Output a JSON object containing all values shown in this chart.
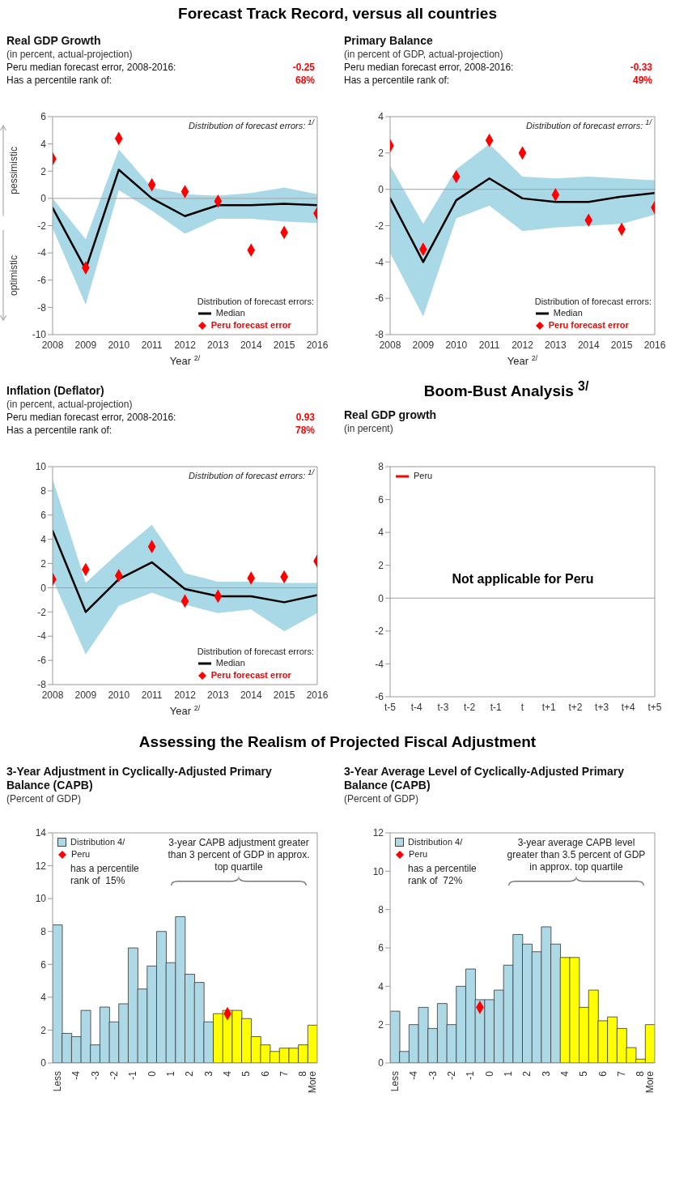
{
  "chart_data": [
    {
      "type": "line",
      "title": "Real GDP Growth",
      "subtitle": "(in percent, actual-projection)",
      "xlabel": "Year $^{2/}$",
      "legend_title": "Distribution of forecast errors:",
      "legend": "bottom right",
      "x": [
        2008,
        2009,
        2010,
        2011,
        2012,
        2013,
        2014,
        2015,
        2016
      ],
      "xlim": [
        2008,
        2016
      ],
      "xticks": [
        2008,
        2009,
        2010,
        2011,
        2012,
        2013,
        2014,
        2015,
        2016
      ],
      "ylim": [
        -10,
        6
      ],
      "yticks": [
        -10,
        -8,
        -6,
        -4,
        -2,
        0,
        2,
        4,
        6
      ],
      "series": [
        {
          "name": "Median",
          "type": "line",
          "color": "#000000",
          "marker": "none",
          "values": [
            -0.7,
            -5.2,
            2.1,
            0.0,
            -1.3,
            -0.5,
            -0.5,
            -0.4,
            -0.5
          ],
          "lower": [
            -2.2,
            -7.8,
            0.6,
            -0.9,
            -2.6,
            -1.5,
            -1.5,
            -1.7,
            -1.8
          ],
          "upper": [
            0.0,
            -3.0,
            3.6,
            0.8,
            0.3,
            0.2,
            0.4,
            0.8,
            0.3
          ]
        },
        {
          "name": "Peru forecast error",
          "type": "scatter",
          "color": "#ff0000",
          "marker": "diamond",
          "values": [
            2.9,
            -5.1,
            4.4,
            1.0,
            0.5,
            -0.2,
            -3.8,
            -2.5,
            -1.1
          ]
        }
      ],
      "ref_lines": [
        {
          "axis": "y",
          "value": 0,
          "color": "#a0a0a0"
        }
      ],
      "annotations": [
        "Peru median forecast error, 2008-2016:",
        "-0.25",
        "Has a percentile rank of:",
        "68%",
        "Distribution of forecast errors: $^{1/}$",
        "pessimistic",
        "optimistic"
      ]
    },
    {
      "type": "line",
      "title": "Primary Balance",
      "subtitle": "(in percent of GDP, actual-projection)",
      "xlabel": "Year $^{2/}$",
      "legend_title": "Distribution of forecast errors:",
      "legend": "bottom right",
      "x": [
        2008,
        2009,
        2010,
        2011,
        2012,
        2013,
        2014,
        2015,
        2016
      ],
      "xlim": [
        2008,
        2016
      ],
      "xticks": [
        2008,
        2009,
        2010,
        2011,
        2012,
        2013,
        2014,
        2015,
        2016
      ],
      "ylim": [
        -8,
        4
      ],
      "yticks": [
        -8,
        -6,
        -4,
        -2,
        0,
        2,
        4
      ],
      "series": [
        {
          "name": "Median",
          "type": "line",
          "color": "#000000",
          "marker": "none",
          "values": [
            -0.5,
            -4.0,
            -0.6,
            0.6,
            -0.5,
            -0.7,
            -0.7,
            -0.4,
            -0.2
          ],
          "lower": [
            -3.5,
            -7.0,
            -1.6,
            -0.9,
            -2.3,
            -2.1,
            -2.0,
            -1.9,
            -1.4
          ],
          "upper": [
            1.3,
            -1.9,
            1.1,
            2.5,
            0.7,
            0.6,
            0.7,
            0.6,
            0.5
          ]
        },
        {
          "name": "Peru forecast error",
          "type": "scatter",
          "color": "#ff0000",
          "marker": "diamond",
          "values": [
            2.4,
            -3.3,
            0.7,
            2.7,
            2.0,
            -0.3,
            -1.7,
            -2.2,
            -1.0
          ]
        }
      ],
      "ref_lines": [
        {
          "axis": "y",
          "value": 0,
          "color": "#a0a0a0"
        }
      ],
      "annotations": [
        "Peru median forecast error, 2008-2016:",
        "-0.33",
        "Has a percentile rank of:",
        "49%",
        "Distribution of forecast errors: $^{1/}$",
        "Forecast Track Record, versus all countries"
      ]
    },
    {
      "type": "line",
      "title": "Inflation (Deflator)",
      "subtitle": "(in percent, actual-projection)",
      "xlabel": "Year $^{2/}$",
      "legend_title": "Distribution of forecast errors:",
      "legend": "bottom right",
      "x": [
        2008,
        2009,
        2010,
        2011,
        2012,
        2013,
        2014,
        2015,
        2016
      ],
      "xlim": [
        2008,
        2016
      ],
      "xticks": [
        2008,
        2009,
        2010,
        2011,
        2012,
        2013,
        2014,
        2015,
        2016
      ],
      "ylim": [
        -8,
        10
      ],
      "yticks": [
        -8,
        -6,
        -4,
        -2,
        0,
        2,
        4,
        6,
        8,
        10
      ],
      "series": [
        {
          "name": "Median",
          "type": "line",
          "color": "#000000",
          "marker": "none",
          "values": [
            4.7,
            -2.0,
            0.7,
            2.1,
            -0.1,
            -0.7,
            -0.7,
            -1.2,
            -0.6
          ],
          "lower": [
            0.7,
            -5.5,
            -1.5,
            -0.4,
            -1.4,
            -2.1,
            -1.8,
            -3.6,
            -2.1
          ],
          "upper": [
            9.0,
            0.4,
            2.9,
            5.2,
            1.2,
            0.5,
            0.5,
            0.4,
            0.4
          ]
        },
        {
          "name": "Peru forecast error",
          "type": "scatter",
          "color": "#ff0000",
          "marker": "diamond",
          "values": [
            0.7,
            1.5,
            1.0,
            3.4,
            -1.1,
            -0.7,
            0.8,
            0.9,
            2.2
          ]
        }
      ],
      "ref_lines": [
        {
          "axis": "y",
          "value": 0,
          "color": "#a0a0a0"
        }
      ],
      "annotations": [
        "Peru median forecast error, 2008-2016:",
        "0.93",
        "Has a percentile rank of:",
        "78%",
        "Distribution of forecast errors: $^{1/}$"
      ]
    },
    {
      "type": "bar",
      "title": "3-Year Adjustment in Cyclically-Adjusted Primary Balance (CAPB)",
      "subtitle": "(Percent of GDP)",
      "legend": "top left",
      "categories": [
        "Less",
        null,
        "-4",
        null,
        "-3",
        null,
        "-2",
        null,
        "-1",
        null,
        "0",
        null,
        "1",
        null,
        "2",
        null,
        "3",
        null,
        "4",
        null,
        "5",
        null,
        "6",
        null,
        "7",
        null,
        "8",
        "More"
      ],
      "ylim": [
        0,
        14
      ],
      "yticks": [
        0,
        2,
        4,
        6,
        8,
        10,
        12,
        14
      ],
      "series": [
        {
          "name": "Distribution 4/",
          "type": "bar",
          "color": "#add8e6",
          "values": [
            8.4,
            1.8,
            1.6,
            3.2,
            1.1,
            3.4,
            2.5,
            3.6,
            7.0,
            4.5,
            5.9,
            8.0,
            6.1,
            8.9,
            5.4,
            4.9,
            2.5,
            3.0,
            3.2,
            3.2,
            2.7,
            1.6,
            1.1,
            0.7,
            0.9,
            0.9,
            1.1,
            2.3
          ],
          "colors": [
            "#add8e6",
            "#add8e6",
            "#add8e6",
            "#add8e6",
            "#add8e6",
            "#add8e6",
            "#add8e6",
            "#add8e6",
            "#add8e6",
            "#add8e6",
            "#add8e6",
            "#add8e6",
            "#add8e6",
            "#add8e6",
            "#add8e6",
            "#add8e6",
            "#add8e6",
            "#ffff00",
            "#ffff00",
            "#ffff00",
            "#ffff00",
            "#ffff00",
            "#ffff00",
            "#ffff00",
            "#ffff00",
            "#ffff00",
            "#ffff00",
            "#ffff00"
          ]
        },
        {
          "name": "Peru",
          "type": "scatter",
          "color": "#ff0000",
          "marker": "diamond",
          "values": [
            null,
            null,
            null,
            null,
            null,
            null,
            null,
            null,
            null,
            null,
            null,
            null,
            null,
            null,
            null,
            null,
            null,
            null,
            3.0,
            null,
            null,
            null,
            null,
            null,
            null,
            null,
            null,
            null
          ]
        }
      ],
      "annotations": [
        "has a percentile rank of  15%",
        "3-year CAPB adjustment greater than 3 percent of GDP in approx. top quartile",
        "Assessing the Realism of Projected Fiscal Adjustment"
      ]
    },
    {
      "type": "bar",
      "title": "3-Year Average Level of Cyclically-Adjusted Primary Balance (CAPB)",
      "subtitle": "(Percent of GDP)",
      "legend": "top left",
      "categories": [
        "Less",
        null,
        "-4",
        null,
        "-3",
        null,
        "-2",
        null,
        "-1",
        null,
        "0",
        null,
        "1",
        null,
        "2",
        null,
        "3",
        null,
        "4",
        null,
        "5",
        null,
        "6",
        null,
        "7",
        null,
        "8",
        "More"
      ],
      "ylim": [
        0,
        12
      ],
      "yticks": [
        0,
        2,
        4,
        6,
        8,
        10,
        12
      ],
      "series": [
        {
          "name": "Distribution 4/",
          "type": "bar",
          "color": "#add8e6",
          "values": [
            2.7,
            0.6,
            2.0,
            2.9,
            1.8,
            3.1,
            2.0,
            4.0,
            4.9,
            3.3,
            3.3,
            3.8,
            5.1,
            6.7,
            6.2,
            5.8,
            7.1,
            6.2,
            5.5,
            5.5,
            2.9,
            3.8,
            2.2,
            2.4,
            1.8,
            0.8,
            0.2,
            2.0
          ],
          "colors": [
            "#add8e6",
            "#add8e6",
            "#add8e6",
            "#add8e6",
            "#add8e6",
            "#add8e6",
            "#add8e6",
            "#add8e6",
            "#add8e6",
            "#add8e6",
            "#add8e6",
            "#add8e6",
            "#add8e6",
            "#add8e6",
            "#add8e6",
            "#add8e6",
            "#add8e6",
            "#add8e6",
            "#ffff00",
            "#ffff00",
            "#ffff00",
            "#ffff00",
            "#ffff00",
            "#ffff00",
            "#ffff00",
            "#ffff00",
            "#ffff00",
            "#ffff00"
          ]
        },
        {
          "name": "Peru",
          "type": "scatter",
          "color": "#ff0000",
          "marker": "diamond",
          "values": [
            null,
            null,
            null,
            null,
            null,
            null,
            null,
            null,
            null,
            2.9,
            null,
            null,
            null,
            null,
            null,
            null,
            null,
            null,
            null,
            null,
            null,
            null,
            null,
            null,
            null,
            null,
            null,
            null
          ]
        }
      ],
      "annotations": [
        "has a percentile rank of  72%",
        "3-year average CAPB level greater than 3.5 percent of GDP in approx. top quartile"
      ]
    },
    {
      "type": "line",
      "title": "Real GDP growth",
      "subtitle": "(in percent)",
      "legend": "top left",
      "categories": [
        "t-5",
        "t-4",
        "t-3",
        "t-2",
        "t-1",
        "t",
        "t+1",
        "t+2",
        "t+3",
        "t+4",
        "t+5"
      ],
      "ylim": [
        -6,
        8
      ],
      "yticks": [
        -6,
        -4,
        -2,
        0,
        2,
        4,
        6,
        8
      ],
      "series": [
        {
          "name": "Peru",
          "color": "#ff0000",
          "marker": "none",
          "values": [
            null,
            null,
            null,
            null,
            null,
            null,
            null,
            null,
            null,
            null,
            null
          ]
        }
      ],
      "ref_lines": [
        {
          "axis": "y",
          "value": 0,
          "color": "#a0a0a0"
        }
      ],
      "annotations": [
        "Not applicable for Peru",
        "Boom-Bust Analysis $^{3/}$"
      ]
    }
  ]
}
